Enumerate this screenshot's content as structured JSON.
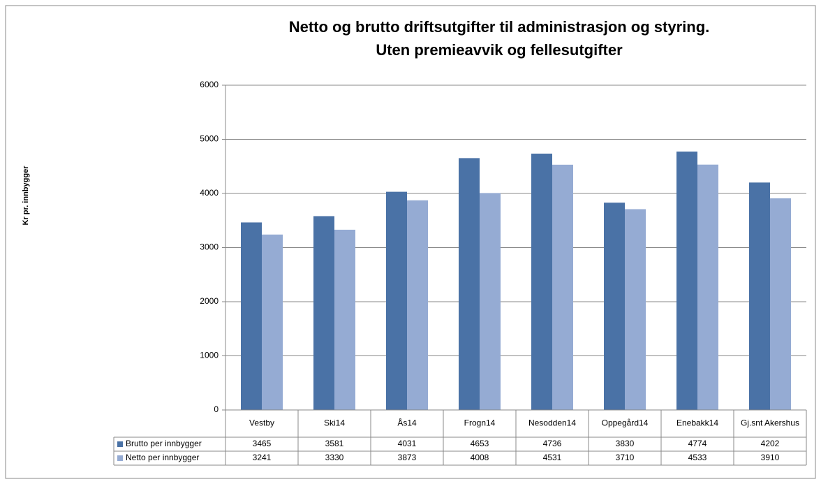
{
  "chart_data": {
    "type": "bar",
    "title": "Netto og brutto driftsutgifter til administrasjon og  styring.",
    "subtitle": "Uten premieavvik og fellesutgifter",
    "y_label": "Kr pr. innbygger",
    "categories": [
      "Vestby",
      "Ski14",
      "Ås14",
      "Frogn14",
      "Nesodden14",
      "Oppegård14",
      "Enebakk14",
      "Gj.snt Akershus"
    ],
    "series": [
      {
        "name": "Brutto per innbygger",
        "color": "#4a72a6",
        "values": [
          3465,
          3581,
          4031,
          4653,
          4736,
          3830,
          4774,
          4202
        ]
      },
      {
        "name": "Netto per innbygger",
        "color": "#95abd3",
        "values": [
          3241,
          3330,
          3873,
          4008,
          4531,
          3710,
          4533,
          3910
        ]
      }
    ],
    "ylim": [
      0,
      6000
    ],
    "yticks": [
      0,
      1000,
      2000,
      3000,
      4000,
      5000,
      6000
    ],
    "grid": true
  }
}
